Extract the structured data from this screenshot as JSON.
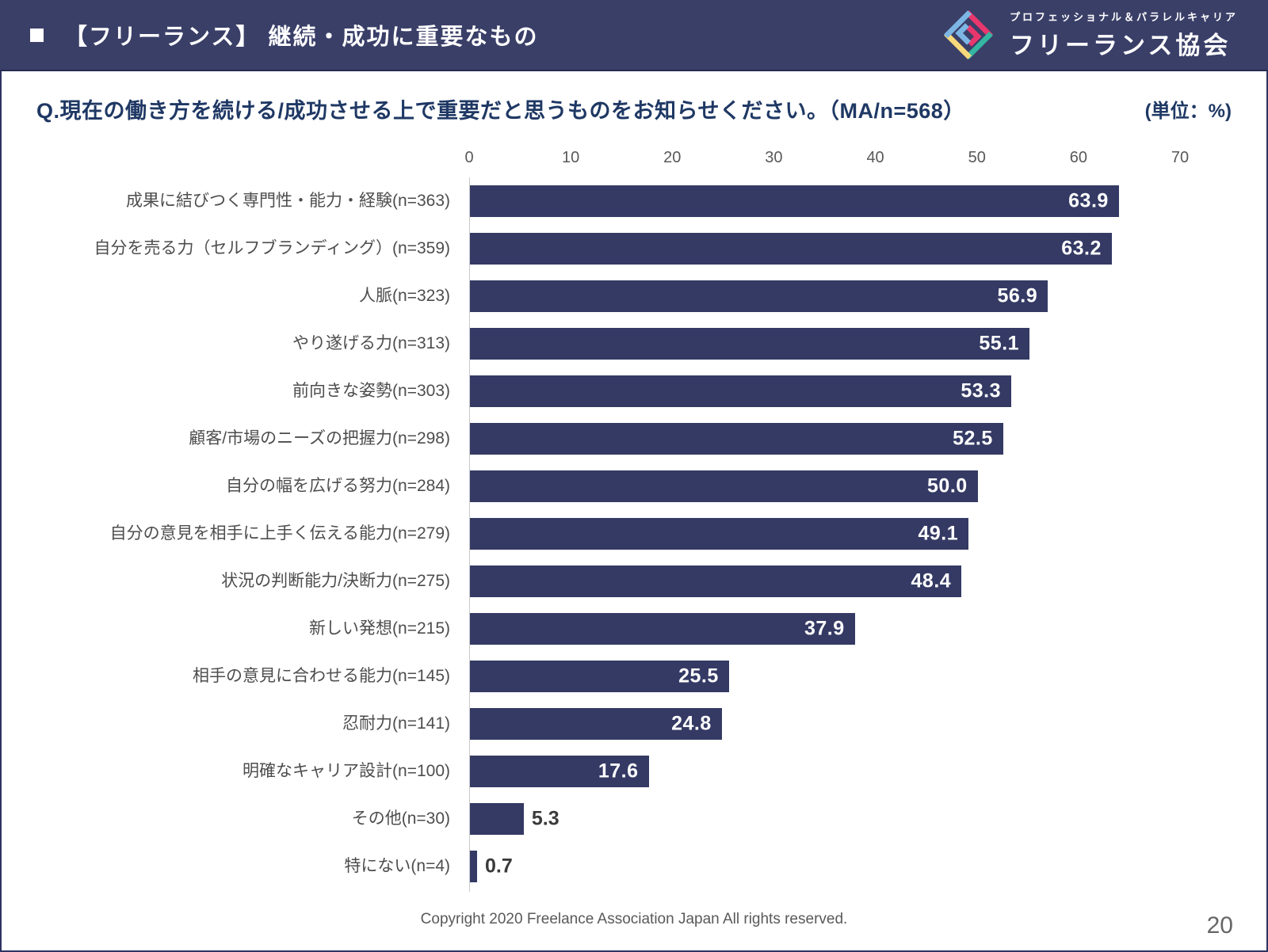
{
  "header": {
    "title": "【フリーランス】 継続・成功に重要なもの",
    "logo": {
      "tagline": "プロフェッショナル＆パラレルキャリア",
      "name": "フリーランス協会"
    }
  },
  "question": {
    "text": "Q.現在の働き方を続ける/成功させる上で重要だと思うものをお知らせください。（MA/n=568）",
    "unit": "(単位：%)"
  },
  "chart_data": {
    "type": "bar",
    "orientation": "horizontal",
    "title": "",
    "xlabel": "",
    "ylabel": "",
    "xlim": [
      0,
      70
    ],
    "ticks": [
      0,
      10,
      20,
      30,
      40,
      50,
      60,
      70
    ],
    "grid": false,
    "legend": false,
    "value_label_inside_threshold": 10,
    "categories": [
      "成果に結びつく専門性・能力・経験(n=363)",
      "自分を売る力（セルフブランディング）(n=359)",
      "人脈(n=323)",
      "やり遂げる力(n=313)",
      "前向きな姿勢(n=303)",
      "顧客/市場のニーズの把握力(n=298)",
      "自分の幅を広げる努力(n=284)",
      "自分の意見を相手に上手く伝える能力(n=279)",
      "状況の判断能力/決断力(n=275)",
      "新しい発想(n=215)",
      "相手の意見に合わせる能力(n=145)",
      "忍耐力(n=141)",
      "明確なキャリア設計(n=100)",
      "その他(n=30)",
      "特にない(n=4)"
    ],
    "values": [
      63.9,
      63.2,
      56.9,
      55.1,
      53.3,
      52.5,
      50.0,
      49.1,
      48.4,
      37.9,
      25.5,
      24.8,
      17.6,
      5.3,
      0.7
    ]
  },
  "colors": {
    "header_bg": "#3A3F68",
    "bar": "#343A64",
    "question_text": "#1F3864",
    "logo_pink": "#E8376D",
    "logo_teal": "#35B6A2",
    "logo_blue": "#7CB6E4",
    "logo_yellow": "#F7D97B"
  },
  "footer": {
    "copyright": "Copyright 2020 Freelance Association Japan  All rights reserved.",
    "page_number": "20"
  }
}
